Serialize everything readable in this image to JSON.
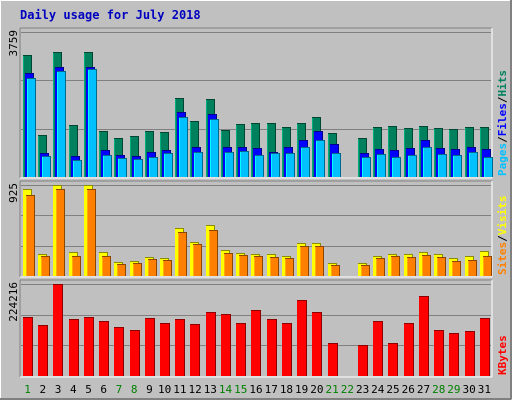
{
  "chart_data": {
    "type": "bar",
    "title": "Daily usage for July 2018",
    "categories": [
      "1",
      "2",
      "3",
      "4",
      "5",
      "6",
      "7",
      "8",
      "9",
      "10",
      "11",
      "12",
      "13",
      "14",
      "15",
      "16",
      "17",
      "18",
      "19",
      "20",
      "21",
      "22",
      "23",
      "24",
      "25",
      "26",
      "27",
      "28",
      "29",
      "30",
      "31"
    ],
    "weekend_days": [
      "1",
      "7",
      "8",
      "14",
      "15",
      "21",
      "22",
      "28",
      "29"
    ],
    "panels": [
      {
        "id": "pages-files-hits",
        "ymax_label": "3759",
        "ymax": 3759,
        "legend": [
          {
            "text": "Pages",
            "color": "#00c0ff"
          },
          {
            "text": "/",
            "color": "#000000"
          },
          {
            "text": "Files",
            "color": "#0000ff"
          },
          {
            "text": "/",
            "color": "#000000"
          },
          {
            "text": "Hits",
            "color": "#00805c"
          }
        ],
        "series": [
          {
            "name": "Hits",
            "color": "#00805c",
            "values": [
              3150,
              1100,
              3230,
              1340,
              3240,
              1180,
              1010,
              1070,
              1190,
              1170,
              2040,
              1460,
              2010,
              1230,
              1380,
              1410,
              1400,
              1300,
              1400,
              1550,
              1150,
              0,
              1000,
              1300,
              1310,
              1270,
              1330,
              1270,
              1240,
              1300,
              1300
            ]
          },
          {
            "name": "Files",
            "color": "#0000ff",
            "values": [
              2700,
              620,
              2840,
              540,
              2840,
              700,
              580,
              540,
              660,
              700,
              1680,
              780,
              1640,
              770,
              770,
              740,
              660,
              780,
              950,
              1180,
              850,
              0,
              620,
              720,
              690,
              760,
              950,
              740,
              730,
              770,
              720
            ]
          },
          {
            "name": "Pages",
            "color": "#00c0ff",
            "values": [
              2560,
              540,
              2750,
              440,
              2800,
              560,
              480,
              460,
              530,
              610,
              1550,
              640,
              1500,
              640,
              670,
              580,
              610,
              620,
              780,
              950,
              620,
              0,
              530,
              590,
              510,
              580,
              770,
              600,
              580,
              650,
              510
            ]
          }
        ]
      },
      {
        "id": "sites-visits",
        "ymax_label": "925",
        "ymax": 925,
        "legend": [
          {
            "text": "Sites",
            "color": "#ff8000"
          },
          {
            "text": "/",
            "color": "#000000"
          },
          {
            "text": "Visits",
            "color": "#ffff00"
          }
        ],
        "series": [
          {
            "name": "Visits",
            "color": "#ffff00",
            "values": [
              880,
              220,
              925,
              240,
              925,
              240,
              140,
              150,
              190,
              180,
              490,
              350,
              520,
              260,
              230,
              220,
              220,
              200,
              340,
              340,
              130,
              0,
              130,
              200,
              220,
              220,
              240,
              220,
              180,
              200,
              250
            ]
          },
          {
            "name": "Sites",
            "color": "#ff8000",
            "values": [
              820,
              200,
              880,
              200,
              880,
              200,
              120,
              130,
              170,
              160,
              450,
              330,
              470,
              230,
              210,
              200,
              190,
              180,
              300,
              310,
              110,
              0,
              115,
              180,
              200,
              190,
              210,
              190,
              150,
              160,
              200
            ]
          }
        ]
      },
      {
        "id": "kbytes",
        "ymax_label": "224216",
        "ymax": 224216,
        "legend": [
          {
            "text": "KBytes",
            "color": "#ff0000"
          }
        ],
        "series": [
          {
            "name": "KBytes",
            "color": "#ff0000",
            "values": [
              145000,
              125000,
              224216,
              140000,
              145000,
              133000,
              120000,
              112000,
              142000,
              128000,
              140000,
              126000,
              155000,
              150000,
              128000,
              160000,
              140000,
              128000,
              185000,
              157000,
              80000,
              0,
              75000,
              135000,
              80000,
              128000,
              195000,
              112000,
              105000,
              110000,
              142000
            ]
          }
        ]
      }
    ],
    "colors": {
      "background": "#c0c0c0",
      "title": "#0000c0",
      "weekday_label": "#00805c",
      "weekend_label": "#008000"
    }
  }
}
